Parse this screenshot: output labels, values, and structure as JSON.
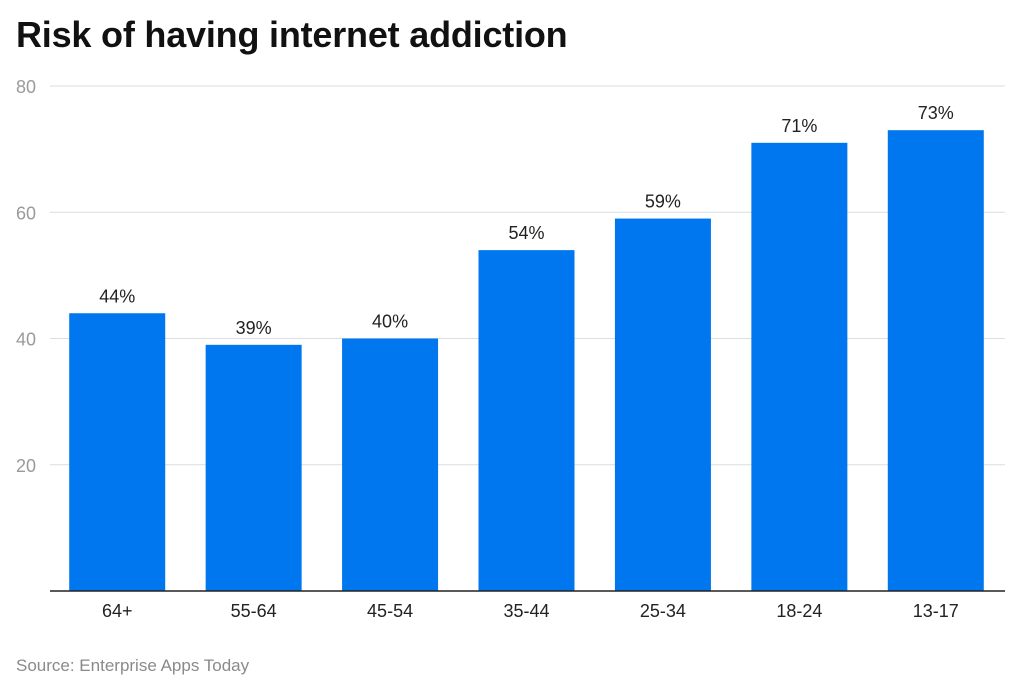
{
  "chart_data": {
    "type": "bar",
    "title": "Risk of having internet addiction",
    "categories": [
      "64+",
      "55-64",
      "45-54",
      "35-44",
      "25-34",
      "18-24",
      "13-17"
    ],
    "values": [
      44,
      39,
      40,
      54,
      59,
      71,
      73
    ],
    "value_labels": [
      "44%",
      "39%",
      "40%",
      "54%",
      "59%",
      "71%",
      "73%"
    ],
    "yticks": [
      "20",
      "40",
      "60",
      "80"
    ],
    "ylim": [
      0,
      80
    ],
    "grid": true,
    "bar_color": "#0077ee",
    "source": "Source: Enterprise Apps Today"
  }
}
